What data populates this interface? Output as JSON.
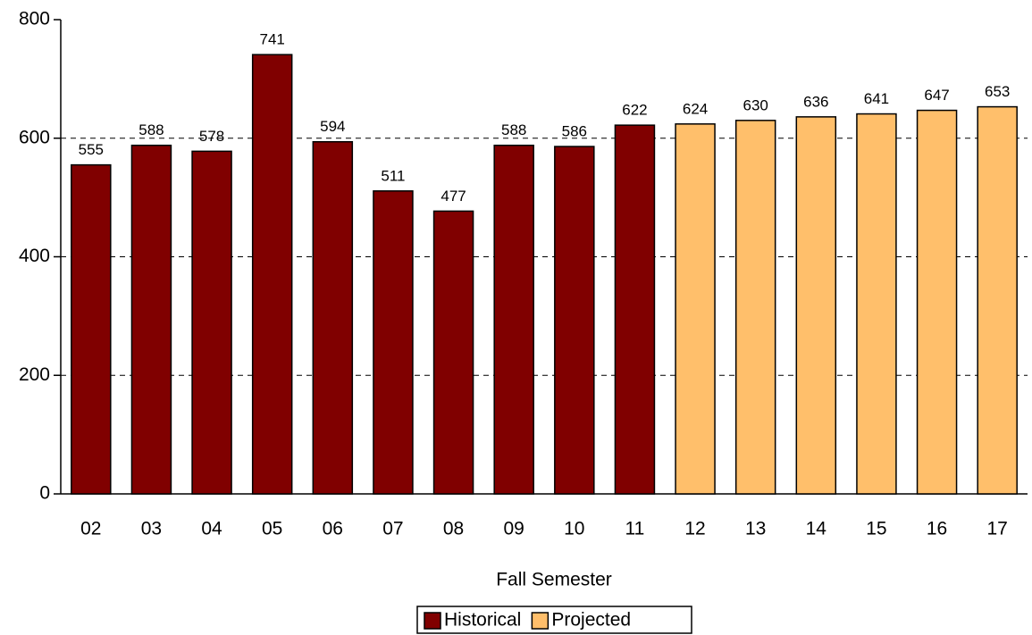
{
  "chart_data": {
    "type": "bar",
    "x_label": "Fall Semester",
    "categories": [
      "02",
      "03",
      "04",
      "05",
      "06",
      "07",
      "08",
      "09",
      "10",
      "11",
      "12",
      "13",
      "14",
      "15",
      "16",
      "17"
    ],
    "series": [
      {
        "name": "Historical",
        "color": "#800000",
        "values": [
          555,
          588,
          578,
          741,
          594,
          511,
          477,
          588,
          586,
          622,
          null,
          null,
          null,
          null,
          null,
          null
        ]
      },
      {
        "name": "Projected",
        "color": "#ffbf6b",
        "values": [
          null,
          null,
          null,
          null,
          null,
          null,
          null,
          null,
          null,
          null,
          624,
          630,
          636,
          641,
          647,
          653
        ]
      }
    ],
    "ylim": [
      0,
      800
    ],
    "yticks": [
      0,
      200,
      400,
      600,
      800
    ],
    "grid": true,
    "legend": "bottom"
  }
}
